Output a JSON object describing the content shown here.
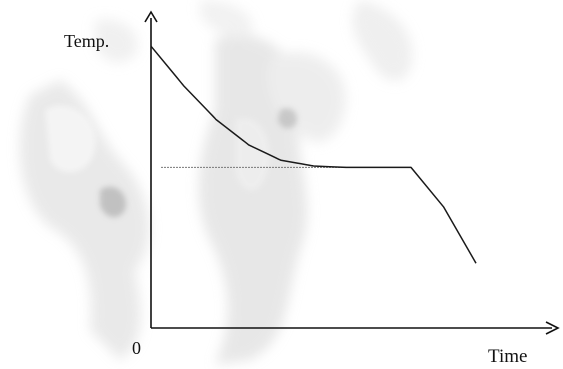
{
  "chart_data": {
    "type": "line",
    "ylabel": "Temp.",
    "xlabel": "Time",
    "origin_label": "0",
    "series": [
      {
        "x": [
          0,
          1,
          2,
          3,
          4,
          5,
          6,
          7,
          8,
          9,
          10
        ],
        "y": [
          10,
          8.6,
          7.4,
          6.5,
          5.95,
          5.75,
          5.7,
          5.7,
          5.7,
          4.3,
          2.3
        ]
      }
    ],
    "reference_line": {
      "y": 5.7
    },
    "xlim": [
      0,
      12
    ],
    "ylim": [
      0,
      11
    ],
    "grid": false,
    "ticks": false,
    "line_color": "#1a1a1a",
    "axis_color": "#111111"
  }
}
